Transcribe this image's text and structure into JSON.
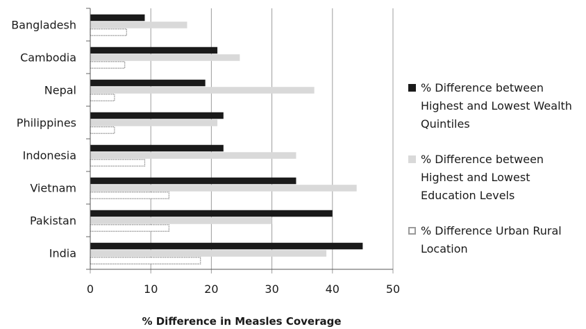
{
  "chart_data": {
    "type": "bar",
    "orientation": "horizontal",
    "categories": [
      "Bangladesh",
      "Cambodia",
      "Nepal",
      "Philippines",
      "Indonesia",
      "Vietnam",
      "Pakistan",
      "India"
    ],
    "series": [
      {
        "name": "% Difference between Highest and Lowest Wealth Quintiles",
        "values": [
          9,
          21,
          19,
          22,
          22,
          34,
          40,
          45
        ],
        "color": "#1a1a1a"
      },
      {
        "name": "% Difference between Highest and Lowest Education Levels",
        "values": [
          16,
          24.7,
          37,
          21,
          34,
          44,
          30,
          39
        ],
        "color": "#d9d9d9"
      },
      {
        "name": "% Difference Urban Rural Location",
        "values": [
          6,
          5.7,
          4,
          4,
          9,
          13,
          13,
          18.2
        ],
        "color": "#ffffff"
      }
    ],
    "xlabel": "% Difference in Measles Coverage",
    "xlim": [
      0,
      50
    ],
    "xticks": [
      0,
      10,
      20,
      30,
      40,
      50
    ],
    "grid": true,
    "legend_position": "right"
  }
}
